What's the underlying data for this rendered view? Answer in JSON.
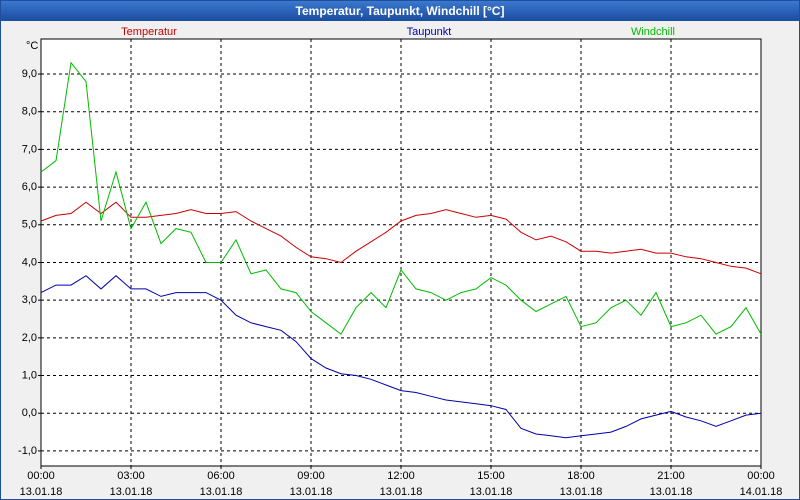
{
  "chart_data": {
    "type": "line",
    "title": "Temperatur, Taupunkt, Windchill [°C]",
    "y_unit": "°C",
    "x": [
      0,
      0.5,
      1,
      1.5,
      2,
      2.5,
      3,
      3.5,
      4,
      4.5,
      5,
      5.5,
      6,
      6.5,
      7,
      7.5,
      8,
      8.5,
      9,
      9.5,
      10,
      10.5,
      11,
      11.5,
      12,
      12.5,
      13,
      13.5,
      14,
      14.5,
      15,
      15.5,
      16,
      16.5,
      17,
      17.5,
      18,
      18.5,
      19,
      19.5,
      20,
      20.5,
      21,
      21.5,
      22,
      22.5,
      23,
      23.5,
      24
    ],
    "series": [
      {
        "name": "Temperatur",
        "color": "#cc0000",
        "values": [
          5.1,
          5.25,
          5.3,
          5.6,
          5.3,
          5.6,
          5.2,
          5.2,
          5.25,
          5.3,
          5.4,
          5.3,
          5.3,
          5.35,
          5.1,
          4.9,
          4.7,
          4.4,
          4.15,
          4.1,
          4.0,
          4.3,
          4.55,
          4.8,
          5.1,
          5.25,
          5.3,
          5.4,
          5.3,
          5.2,
          5.25,
          5.15,
          4.8,
          4.6,
          4.7,
          4.55,
          4.3,
          4.3,
          4.25,
          4.3,
          4.35,
          4.25,
          4.25,
          4.15,
          4.1,
          4.0,
          3.9,
          3.85,
          3.7
        ]
      },
      {
        "name": "Taupunkt",
        "color": "#0000aa",
        "values": [
          3.2,
          3.4,
          3.4,
          3.65,
          3.3,
          3.65,
          3.3,
          3.3,
          3.1,
          3.2,
          3.2,
          3.2,
          3.0,
          2.6,
          2.4,
          2.3,
          2.2,
          1.9,
          1.45,
          1.2,
          1.05,
          1.0,
          0.9,
          0.75,
          0.6,
          0.55,
          0.45,
          0.35,
          0.3,
          0.25,
          0.2,
          0.1,
          -0.4,
          -0.55,
          -0.6,
          -0.65,
          -0.6,
          -0.55,
          -0.5,
          -0.35,
          -0.15,
          -0.05,
          0.05,
          -0.1,
          -0.2,
          -0.35,
          -0.2,
          -0.05,
          0.0
        ]
      },
      {
        "name": "Windchill",
        "color": "#00bb00",
        "values": [
          6.4,
          6.7,
          9.3,
          8.8,
          5.1,
          6.4,
          4.9,
          5.6,
          4.5,
          4.9,
          4.8,
          4.0,
          4.0,
          4.6,
          3.7,
          3.8,
          3.3,
          3.2,
          2.7,
          2.4,
          2.1,
          2.8,
          3.2,
          2.8,
          3.8,
          3.3,
          3.2,
          3.0,
          3.2,
          3.3,
          3.6,
          3.4,
          3.0,
          2.7,
          2.9,
          3.1,
          2.3,
          2.4,
          2.8,
          3.0,
          2.6,
          3.2,
          2.3,
          2.4,
          2.6,
          2.1,
          2.3,
          2.8,
          2.1
        ]
      }
    ],
    "xlim": [
      0,
      24
    ],
    "xticks": [
      {
        "value": 0,
        "label": "00:00\n13.01.18"
      },
      {
        "value": 3,
        "label": "03:00\n13.01.18"
      },
      {
        "value": 6,
        "label": "06:00\n13.01.18"
      },
      {
        "value": 9,
        "label": "09:00\n13.01.18"
      },
      {
        "value": 12,
        "label": "12:00\n13.01.18"
      },
      {
        "value": 15,
        "label": "15:00\n13.01.18"
      },
      {
        "value": 18,
        "label": "18:00\n13.01.18"
      },
      {
        "value": 21,
        "label": "21:00\n13.01.18"
      },
      {
        "value": 24,
        "label": "00:00\n14.01.18"
      }
    ],
    "ylim": [
      -1.4,
      9.93
    ],
    "yticks": [
      {
        "value": -1,
        "label": "-1,0"
      },
      {
        "value": 0,
        "label": "0,0"
      },
      {
        "value": 1,
        "label": "1,0"
      },
      {
        "value": 2,
        "label": "2,0"
      },
      {
        "value": 3,
        "label": "3,0"
      },
      {
        "value": 4,
        "label": "4,0"
      },
      {
        "value": 5,
        "label": "5,0"
      },
      {
        "value": 6,
        "label": "6,0"
      },
      {
        "value": 7,
        "label": "7,0"
      },
      {
        "value": 8,
        "label": "8,0"
      },
      {
        "value": 9,
        "label": "9,0"
      }
    ],
    "grid": true
  }
}
